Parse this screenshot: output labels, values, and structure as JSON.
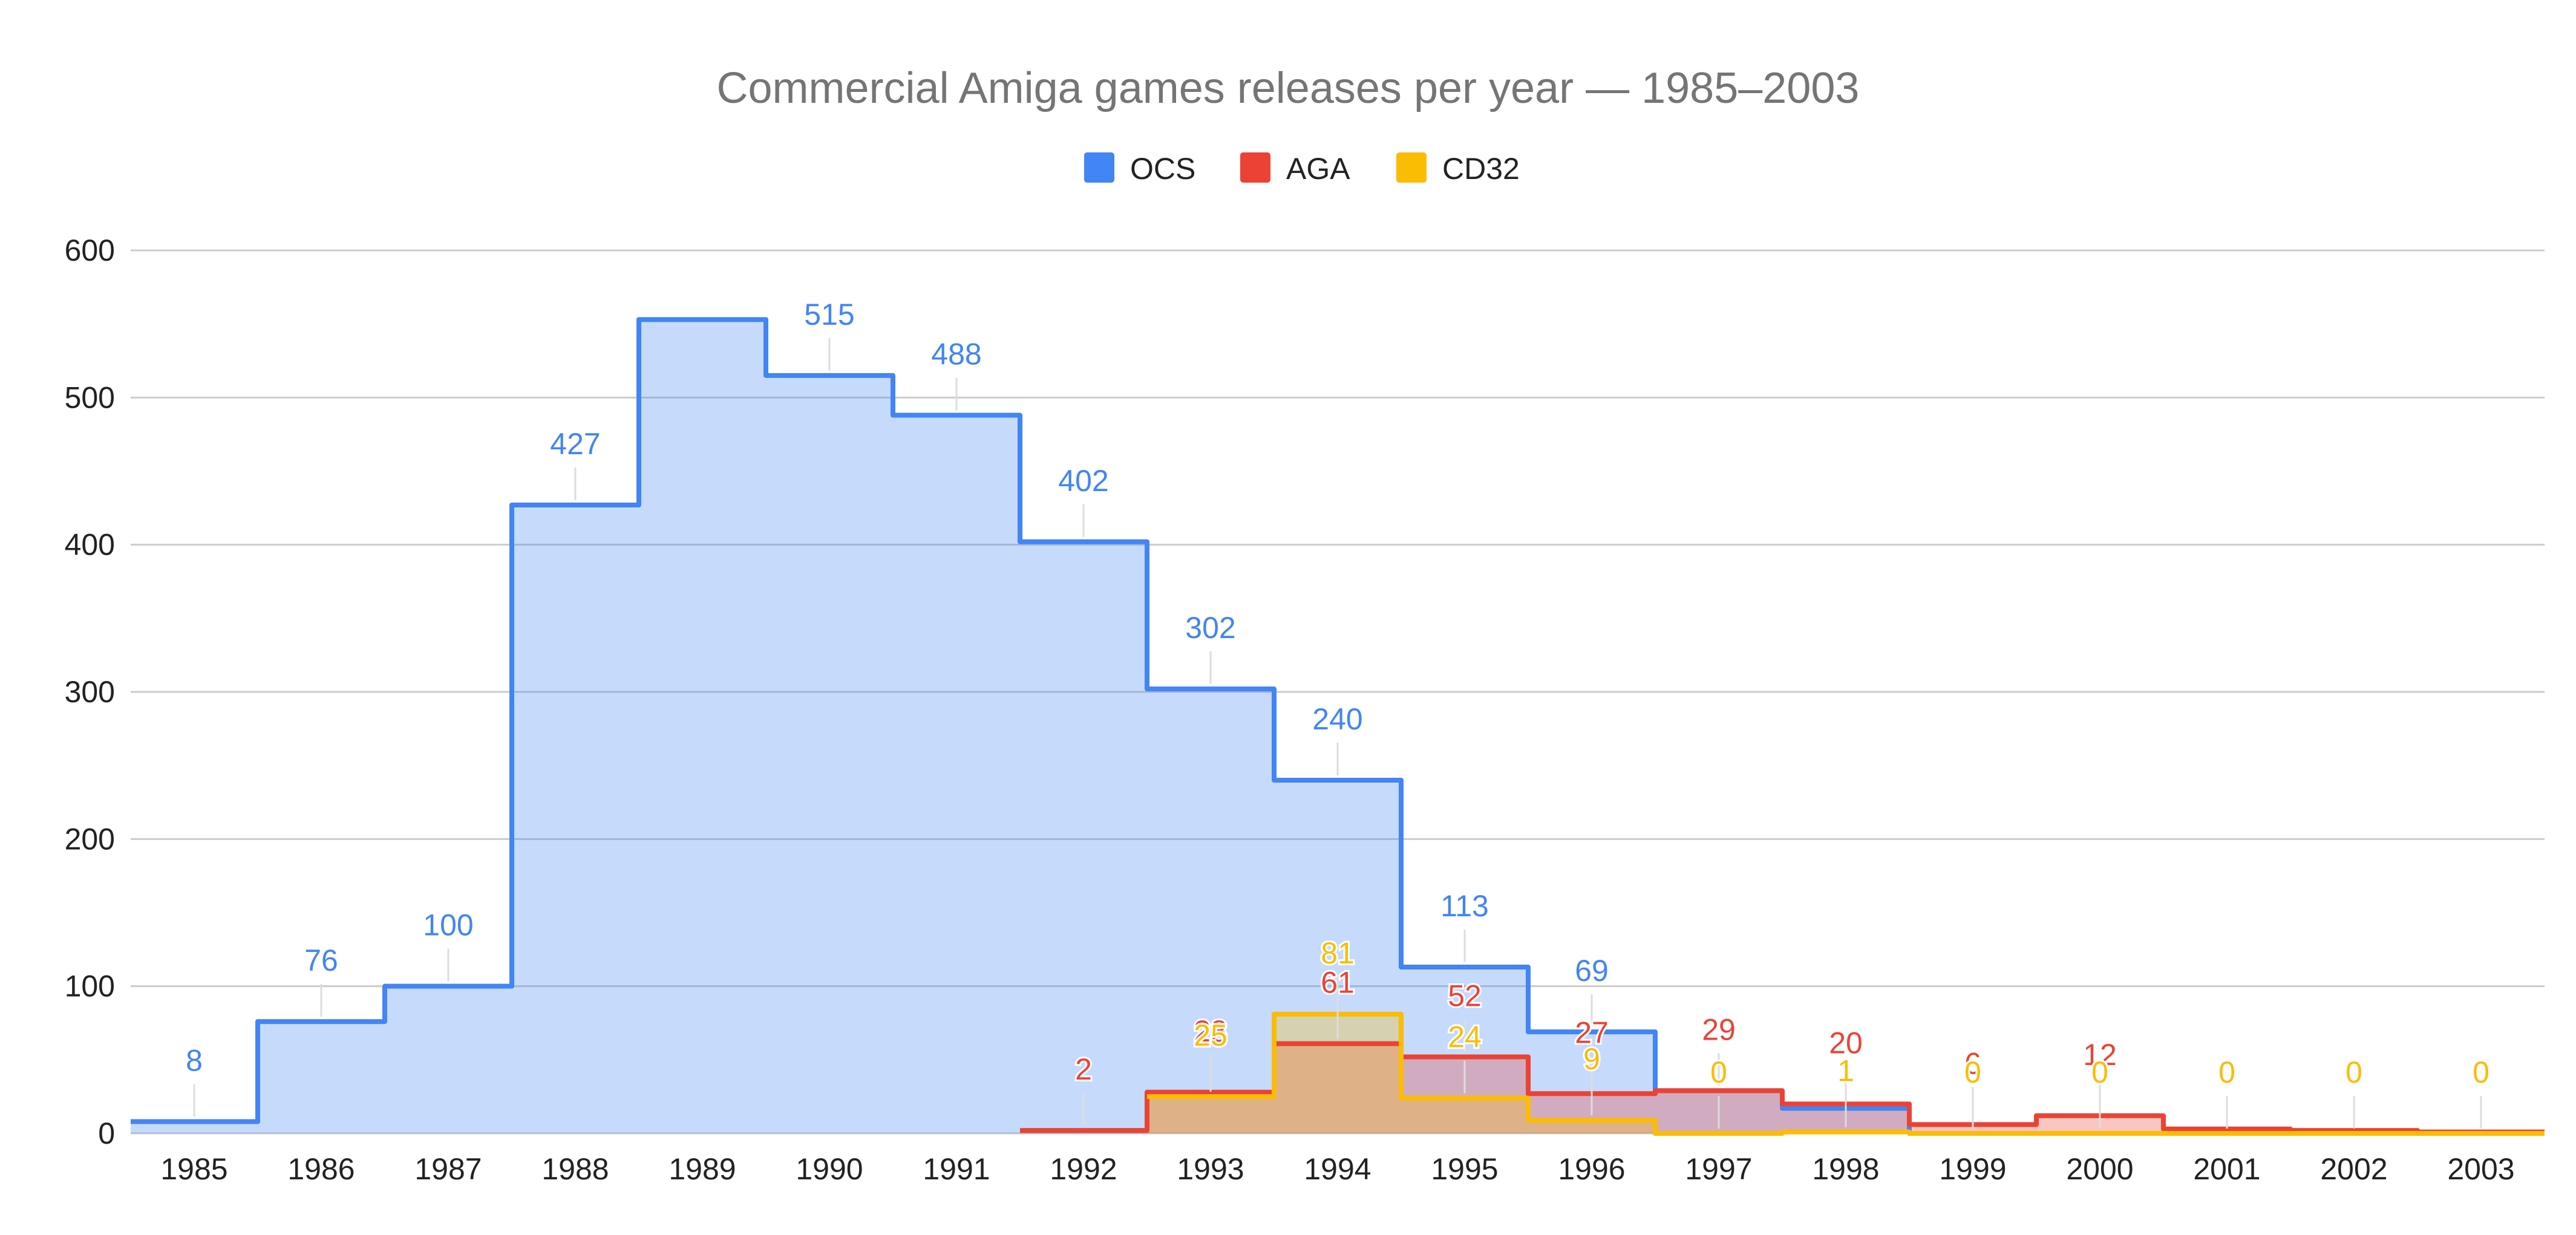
{
  "chart_data": {
    "type": "area",
    "step": true,
    "title": "Commercial Amiga games releases per year — 1985–2003",
    "categories": [
      "1985",
      "1986",
      "1987",
      "1988",
      "1989",
      "1990",
      "1991",
      "1992",
      "1993",
      "1994",
      "1995",
      "1996",
      "1997",
      "1998",
      "1999",
      "2000",
      "2001",
      "2002",
      "2003"
    ],
    "ylim": [
      0,
      600
    ],
    "yticks": [
      "0",
      "100",
      "200",
      "300",
      "400",
      "500",
      "600"
    ],
    "grid": true,
    "legend_position": "top",
    "series": [
      {
        "name": "OCS",
        "color": "#4285f4",
        "values": [
          8,
          76,
          100,
          427,
          553,
          515,
          488,
          402,
          302,
          240,
          113,
          69,
          29,
          17,
          0,
          0,
          0,
          0,
          0
        ],
        "labels": [
          "8",
          "76",
          "100",
          "427",
          "",
          "515",
          "488",
          "402",
          "302",
          "240",
          "113",
          "69",
          "",
          "",
          "",
          "",
          "",
          "",
          ""
        ]
      },
      {
        "name": "AGA",
        "color": "#ea4335",
        "values": [
          0,
          0,
          0,
          0,
          0,
          0,
          0,
          2,
          28,
          61,
          52,
          27,
          29,
          20,
          6,
          12,
          3,
          2,
          1
        ],
        "labels": [
          "",
          "",
          "",
          "",
          "",
          "",
          "",
          "2",
          "28",
          "61",
          "52",
          "27",
          "29",
          "20",
          "6",
          "12",
          "",
          "",
          ""
        ]
      },
      {
        "name": "CD32",
        "color": "#fbbc04",
        "values": [
          0,
          0,
          0,
          0,
          0,
          0,
          0,
          0,
          25,
          81,
          24,
          9,
          0,
          1,
          0,
          0,
          0,
          0,
          0
        ],
        "labels": [
          "",
          "",
          "",
          "",
          "",
          "",
          "",
          "",
          "25",
          "81",
          "24",
          "9",
          "0",
          "1",
          "0",
          "0",
          "0",
          "0",
          "0"
        ]
      }
    ]
  }
}
